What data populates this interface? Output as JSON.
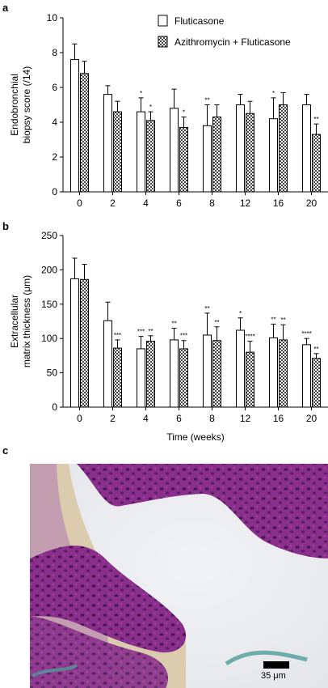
{
  "panels": {
    "a": "a",
    "b": "b",
    "c": "c"
  },
  "legend": {
    "items": [
      "Fluticasone",
      "Azithromycin + Fluticasone"
    ]
  },
  "chart_data": [
    {
      "type": "bar",
      "panel": "a",
      "categories": [
        "0",
        "2",
        "4",
        "6",
        "8",
        "12",
        "16",
        "20"
      ],
      "xlabel": "",
      "ylabel_lines": [
        "Endobronchial",
        "biopsy score (/14)"
      ],
      "ylim": [
        0,
        10
      ],
      "yticks": [
        "0",
        "2",
        "4",
        "6",
        "8",
        "10"
      ],
      "series": [
        {
          "name": "Fluticasone",
          "fill": "white",
          "values": [
            7.6,
            5.6,
            4.6,
            4.8,
            3.8,
            5.0,
            4.2,
            5.0
          ],
          "errors": [
            0.9,
            0.5,
            0.8,
            1.1,
            1.2,
            0.6,
            1.2,
            0.6
          ],
          "sig": [
            "",
            "",
            "*",
            "",
            "**",
            "",
            "*",
            ""
          ]
        },
        {
          "name": "Azithromycin + Fluticasone",
          "fill": "checker",
          "values": [
            6.8,
            4.6,
            4.1,
            3.7,
            4.3,
            4.5,
            5.0,
            3.3
          ],
          "errors": [
            0.7,
            0.6,
            0.5,
            0.6,
            0.7,
            0.7,
            0.7,
            0.6
          ],
          "sig": [
            "",
            "",
            "*",
            "*",
            "",
            "",
            "",
            "**"
          ]
        }
      ]
    },
    {
      "type": "bar",
      "panel": "b",
      "categories": [
        "0",
        "2",
        "4",
        "6",
        "8",
        "12",
        "16",
        "20"
      ],
      "xlabel": "Time (weeks)",
      "ylabel_lines": [
        "Extracellular",
        "matrix thickness (μm)"
      ],
      "ylim": [
        0,
        250
      ],
      "yticks": [
        "0",
        "50",
        "100",
        "150",
        "200",
        "250"
      ],
      "series": [
        {
          "name": "Fluticasone",
          "fill": "white",
          "values": [
            187,
            126,
            85,
            98,
            105,
            112,
            101,
            91
          ],
          "errors": [
            30,
            27,
            18,
            17,
            32,
            18,
            20,
            9
          ],
          "sig": [
            "",
            "",
            "***",
            "**",
            "**",
            "*",
            "**",
            "****"
          ]
        },
        {
          "name": "Azithromycin + Fluticasone",
          "fill": "checker",
          "values": [
            186,
            86,
            96,
            85,
            97,
            80,
            98,
            71
          ],
          "errors": [
            22,
            12,
            8,
            12,
            20,
            16,
            22,
            7
          ],
          "sig": [
            "",
            "***",
            "**",
            "***",
            "**",
            "****",
            "**",
            "**"
          ]
        }
      ]
    }
  ],
  "micrograph": {
    "scale_label": "35 μm"
  }
}
